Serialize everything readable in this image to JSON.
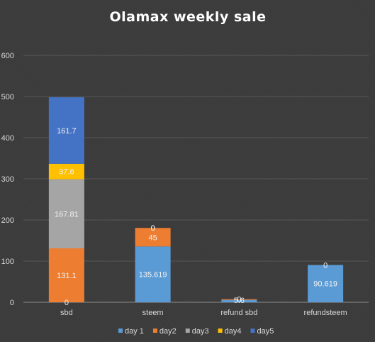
{
  "chart_data": {
    "type": "bar",
    "stacked": true,
    "title": "Olamax weekly sale",
    "categories": [
      "sbd",
      "steem",
      "refund sbd",
      "refundsteem"
    ],
    "ylim": [
      0,
      600
    ],
    "yticks": [
      0,
      100,
      200,
      300,
      400,
      500,
      600
    ],
    "grid": true,
    "legend_position": "bottom",
    "series": [
      {
        "name": "day 1",
        "color": "#5b9bd5",
        "values": [
          0,
          135.619,
          5.6,
          90.619
        ],
        "labels": [
          "0",
          "135.619",
          "5.6",
          "90.619"
        ]
      },
      {
        "name": "day2",
        "color": "#ed7d31",
        "values": [
          131.1,
          45,
          2,
          0
        ],
        "labels": [
          "131.1",
          "45",
          "",
          "0"
        ]
      },
      {
        "name": "day3",
        "color": "#a5a5a5",
        "values": [
          167.81,
          0,
          0,
          0
        ],
        "labels": [
          "167.81",
          "0",
          "",
          ""
        ]
      },
      {
        "name": "day4",
        "color": "#ffc000",
        "values": [
          37.6,
          0,
          0,
          0
        ],
        "labels": [
          "37.6",
          "",
          "",
          ""
        ]
      },
      {
        "name": "day5",
        "color": "#4472c4",
        "values": [
          161.7,
          0,
          0,
          0
        ],
        "labels": [
          "161.7",
          "0",
          "0",
          ""
        ]
      }
    ]
  }
}
